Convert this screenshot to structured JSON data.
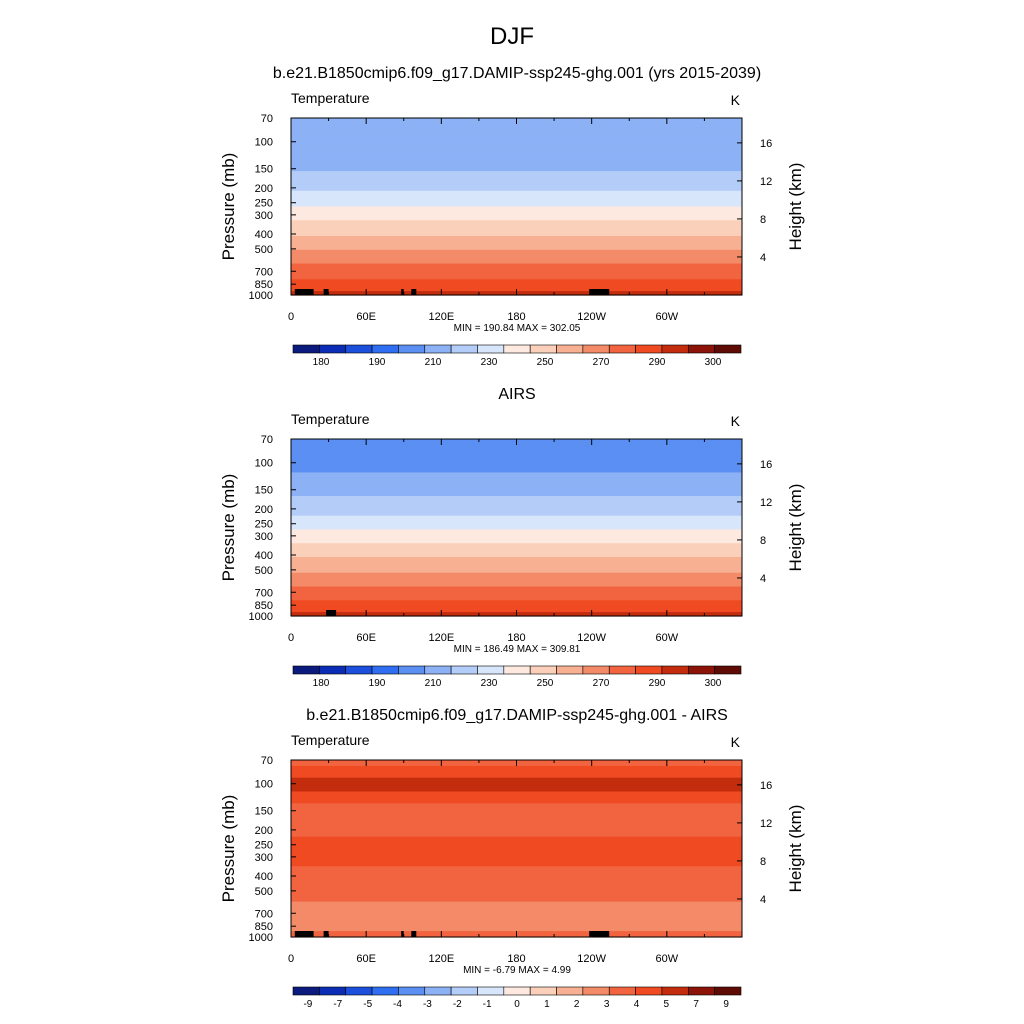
{
  "figure": {
    "title": "DJF"
  },
  "chart_data": [
    {
      "type": "heatmap",
      "title": "b.e21.B1850cmip6.f09_g17.DAMIP-ssp245-ghg.001 (yrs 2015-2039)",
      "left_label": "Temperature",
      "right_label": "K",
      "ylabel": "Pressure (mb)",
      "ylabel_right": "Height (km)",
      "x_ticks": [
        "0",
        "60E",
        "120E",
        "180",
        "120W",
        "60W"
      ],
      "y_ticks": [
        "70",
        "100",
        "150",
        "200",
        "250",
        "300",
        "400",
        "500",
        "700",
        "850",
        "1000"
      ],
      "y_right_ticks": [
        "16",
        "12",
        "8",
        "4"
      ],
      "xlim": [
        0,
        360
      ],
      "ylim": [
        1000,
        70
      ],
      "y_scale": "log",
      "min_max_text": "MIN = 190.84  MAX = 302.05",
      "min": 190.84,
      "max": 302.05,
      "colorbar_labels": [
        "180",
        "190",
        "210",
        "230",
        "250",
        "270",
        "290",
        "300"
      ],
      "levels": [
        175,
        180,
        185,
        190,
        200,
        210,
        220,
        230,
        240,
        250,
        260,
        270,
        280,
        290,
        295,
        300
      ],
      "colors": [
        "#0a1a7d",
        "#0b2db5",
        "#1b4fdc",
        "#2f6ef0",
        "#5b8ff2",
        "#8cb1f5",
        "#b3cdf8",
        "#d8e6fc",
        "#fde9df",
        "#fbd0bb",
        "#f8b093",
        "#f48b68",
        "#f26440",
        "#ef4a22",
        "#c42c0e",
        "#8b1308",
        "#5e0a05"
      ],
      "profile": [
        {
          "p": 70,
          "t": 202
        },
        {
          "p": 100,
          "t": 200
        },
        {
          "p": 150,
          "t": 209
        },
        {
          "p": 200,
          "t": 218
        },
        {
          "p": 250,
          "t": 227
        },
        {
          "p": 300,
          "t": 236
        },
        {
          "p": 400,
          "t": 249
        },
        {
          "p": 500,
          "t": 259
        },
        {
          "p": 700,
          "t": 275
        },
        {
          "p": 850,
          "t": 284
        },
        {
          "p": 1000,
          "t": 293
        }
      ],
      "topography_longitudes": [
        [
          3,
          18
        ],
        [
          26,
          30
        ],
        [
          88,
          90
        ],
        [
          96,
          100
        ],
        [
          238,
          254
        ]
      ]
    },
    {
      "type": "heatmap",
      "title": "AIRS",
      "left_label": "Temperature",
      "right_label": "K",
      "ylabel": "Pressure (mb)",
      "ylabel_right": "Height (km)",
      "x_ticks": [
        "0",
        "60E",
        "120E",
        "180",
        "120W",
        "60W"
      ],
      "y_ticks": [
        "70",
        "100",
        "150",
        "200",
        "250",
        "300",
        "400",
        "500",
        "700",
        "850",
        "1000"
      ],
      "y_right_ticks": [
        "16",
        "12",
        "8",
        "4"
      ],
      "xlim": [
        0,
        360
      ],
      "ylim": [
        1000,
        70
      ],
      "y_scale": "log",
      "min_max_text": "MIN = 186.49  MAX = 309.81",
      "min": 186.49,
      "max": 309.81,
      "colorbar_labels": [
        "180",
        "190",
        "210",
        "230",
        "250",
        "270",
        "290",
        "300"
      ],
      "levels": [
        175,
        180,
        185,
        190,
        200,
        210,
        220,
        230,
        240,
        250,
        260,
        270,
        280,
        290,
        295,
        300
      ],
      "colors": [
        "#0a1a7d",
        "#0b2db5",
        "#1b4fdc",
        "#2f6ef0",
        "#5b8ff2",
        "#8cb1f5",
        "#b3cdf8",
        "#d8e6fc",
        "#fde9df",
        "#fbd0bb",
        "#f8b093",
        "#f48b68",
        "#f26440",
        "#ef4a22",
        "#c42c0e",
        "#8b1308",
        "#5e0a05"
      ],
      "profile": [
        {
          "p": 70,
          "t": 200
        },
        {
          "p": 100,
          "t": 196
        },
        {
          "p": 150,
          "t": 207
        },
        {
          "p": 200,
          "t": 216
        },
        {
          "p": 250,
          "t": 225
        },
        {
          "p": 300,
          "t": 235
        },
        {
          "p": 400,
          "t": 248
        },
        {
          "p": 500,
          "t": 258
        },
        {
          "p": 700,
          "t": 274
        },
        {
          "p": 850,
          "t": 284
        },
        {
          "p": 1000,
          "t": 294
        }
      ],
      "topography_longitudes": [
        [
          28,
          36
        ]
      ]
    },
    {
      "type": "heatmap",
      "title": "b.e21.B1850cmip6.f09_g17.DAMIP-ssp245-ghg.001 - AIRS",
      "left_label": "Temperature",
      "right_label": "K",
      "ylabel": "Pressure (mb)",
      "ylabel_right": "Height (km)",
      "x_ticks": [
        "0",
        "60E",
        "120E",
        "180",
        "120W",
        "60W"
      ],
      "y_ticks": [
        "70",
        "100",
        "150",
        "200",
        "250",
        "300",
        "400",
        "500",
        "700",
        "850",
        "1000"
      ],
      "y_right_ticks": [
        "16",
        "12",
        "8",
        "4"
      ],
      "xlim": [
        0,
        360
      ],
      "ylim": [
        1000,
        70
      ],
      "y_scale": "log",
      "min_max_text": "MIN =  -6.79  MAX =   4.99",
      "min": -6.79,
      "max": 4.99,
      "colorbar_labels": [
        "-9",
        "-7",
        "-5",
        "-4",
        "-3",
        "-2",
        "-1",
        "0",
        "1",
        "2",
        "3",
        "4",
        "5",
        "7",
        "9"
      ],
      "levels": [
        -11,
        -9,
        -8,
        -7,
        -6,
        -5,
        -4,
        -3,
        -2,
        -1,
        0,
        1,
        2,
        3,
        4,
        5,
        6,
        7,
        8,
        9,
        11
      ],
      "colors": [
        "#0a1a7d",
        "#0b2db5",
        "#1b4fdc",
        "#2f6ef0",
        "#5b8ff2",
        "#8cb1f5",
        "#b3cdf8",
        "#d8e6fc",
        "#fde9df",
        "#fbd0bb",
        "#f8b093",
        "#f48b68",
        "#f26440",
        "#ef4a22",
        "#c42c0e",
        "#8b1308",
        "#5e0a05"
      ],
      "profile": [
        {
          "p": 70,
          "t": 1.5
        },
        {
          "p": 100,
          "t": 3.5
        },
        {
          "p": 150,
          "t": 1.5
        },
        {
          "p": 200,
          "t": 1.5
        },
        {
          "p": 250,
          "t": 2.5
        },
        {
          "p": 300,
          "t": 2.5
        },
        {
          "p": 400,
          "t": 1.5
        },
        {
          "p": 500,
          "t": 1.5
        },
        {
          "p": 700,
          "t": 0.5
        },
        {
          "p": 850,
          "t": 0.5
        },
        {
          "p": 1000,
          "t": 1.5
        }
      ],
      "topography_longitudes": [
        [
          3,
          18
        ],
        [
          26,
          30
        ],
        [
          88,
          90
        ],
        [
          96,
          100
        ],
        [
          238,
          254
        ]
      ]
    }
  ]
}
